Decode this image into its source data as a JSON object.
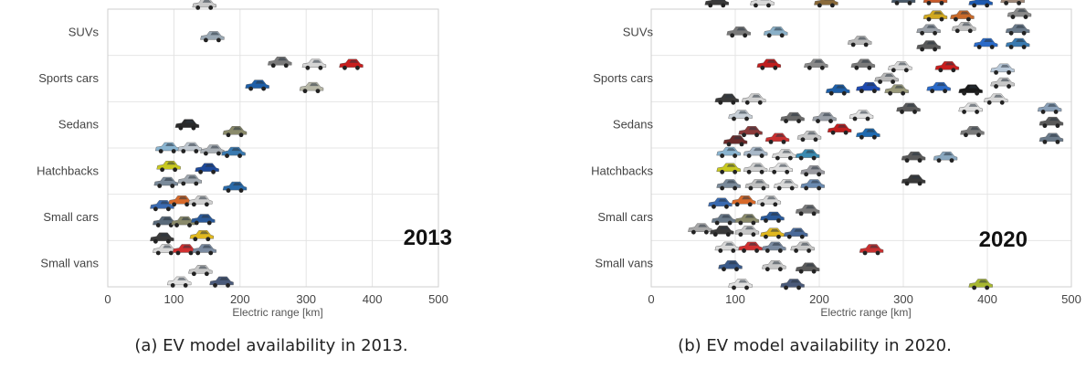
{
  "chart_data": [
    {
      "type": "scatter",
      "xlabel": "Electric range [km]",
      "ylabel": "",
      "xlim": [
        0,
        500
      ],
      "xticks": [
        "0",
        "100",
        "200",
        "300",
        "400",
        "500"
      ],
      "categories": [
        "SUVs",
        "Sports cars",
        "Sedans",
        "Hatchbacks",
        "Small cars",
        "Small vans"
      ],
      "annotation": "2013",
      "caption": "(a) EV model availability in 2013.",
      "points": [
        {
          "category": "SUVs",
          "x": 146,
          "offset": 0.6,
          "color": "#c8c8c8"
        },
        {
          "category": "SUVs",
          "x": 158,
          "offset": -0.1,
          "color": "#9aa8b4"
        },
        {
          "category": "Sports cars",
          "x": 260,
          "offset": 0.35,
          "color": "#7a7a7a"
        },
        {
          "category": "Sports cars",
          "x": 312,
          "offset": 0.3,
          "color": "#d4d4d4"
        },
        {
          "category": "Sports cars",
          "x": 368,
          "offset": 0.3,
          "color": "#c81e1e"
        },
        {
          "category": "Sports cars",
          "x": 226,
          "offset": -0.15,
          "color": "#1e5fa8"
        },
        {
          "category": "Sports cars",
          "x": 308,
          "offset": -0.2,
          "color": "#b8b8a8"
        },
        {
          "category": "Sedans",
          "x": 120,
          "offset": 0.0,
          "color": "#2a2a2a"
        },
        {
          "category": "Sedans",
          "x": 192,
          "offset": -0.15,
          "color": "#8a8a6a"
        },
        {
          "category": "Hatchbacks",
          "x": 90,
          "offset": 0.5,
          "color": "#8ab4d0"
        },
        {
          "category": "Hatchbacks",
          "x": 124,
          "offset": 0.5,
          "color": "#c0c8d0"
        },
        {
          "category": "Hatchbacks",
          "x": 158,
          "offset": 0.45,
          "color": "#aab0b6"
        },
        {
          "category": "Hatchbacks",
          "x": 190,
          "offset": 0.4,
          "color": "#3a7ab0"
        },
        {
          "category": "Hatchbacks",
          "x": 92,
          "offset": 0.1,
          "color": "#c8c820"
        },
        {
          "category": "Hatchbacks",
          "x": 150,
          "offset": 0.05,
          "color": "#1e4a9a"
        },
        {
          "category": "Hatchbacks",
          "x": 88,
          "offset": -0.25,
          "color": "#7a8a9a"
        },
        {
          "category": "Hatchbacks",
          "x": 124,
          "offset": -0.2,
          "color": "#a0a8b0"
        },
        {
          "category": "Hatchbacks",
          "x": 192,
          "offset": -0.35,
          "color": "#2a6aa8"
        },
        {
          "category": "Small cars",
          "x": 82,
          "offset": 0.25,
          "color": "#3a6ab0"
        },
        {
          "category": "Small cars",
          "x": 110,
          "offset": 0.35,
          "color": "#d86a2a"
        },
        {
          "category": "Small cars",
          "x": 140,
          "offset": 0.35,
          "color": "#d0d0d0"
        },
        {
          "category": "Small cars",
          "x": 86,
          "offset": -0.1,
          "color": "#5a6a7a"
        },
        {
          "category": "Small cars",
          "x": 114,
          "offset": -0.1,
          "color": "#8a8a6a"
        },
        {
          "category": "Small cars",
          "x": 144,
          "offset": -0.05,
          "color": "#2a5a9a"
        },
        {
          "category": "Small cars",
          "x": 82,
          "offset": -0.45,
          "color": "#3a3a3a"
        },
        {
          "category": "Small cars",
          "x": 142,
          "offset": -0.4,
          "color": "#e0b820"
        },
        {
          "category": "Small vans",
          "x": 86,
          "offset": 0.3,
          "color": "#d8d8d8"
        },
        {
          "category": "Small vans",
          "x": 116,
          "offset": 0.3,
          "color": "#d03030"
        },
        {
          "category": "Small vans",
          "x": 146,
          "offset": 0.3,
          "color": "#7a8aa0"
        },
        {
          "category": "Small vans",
          "x": 140,
          "offset": -0.15,
          "color": "#c8c8c8"
        },
        {
          "category": "Small vans",
          "x": 108,
          "offset": -0.4,
          "color": "#e0e0e0"
        },
        {
          "category": "Small vans",
          "x": 172,
          "offset": -0.4,
          "color": "#4a5a7a"
        }
      ]
    },
    {
      "type": "scatter",
      "xlabel": "Electric range [km]",
      "ylabel": "",
      "xlim": [
        0,
        500
      ],
      "xticks": [
        "0",
        "100",
        "200",
        "300",
        "400",
        "500"
      ],
      "categories": [
        "SUVs",
        "Sports cars",
        "Sedans",
        "Hatchbacks",
        "Small cars",
        "Small vans"
      ],
      "annotation": "2020",
      "caption": "(b) EV model availability in 2020.",
      "points": [
        {
          "category": "SUVs",
          "x": 78,
          "offset": 0.65,
          "color": "#3a3a3a"
        },
        {
          "category": "SUVs",
          "x": 132,
          "offset": 0.65,
          "color": "#d8d8d8"
        },
        {
          "category": "SUVs",
          "x": 208,
          "offset": 0.65,
          "color": "#8a6a3a"
        },
        {
          "category": "SUVs",
          "x": 300,
          "offset": 0.7,
          "color": "#4a5a6a"
        },
        {
          "category": "SUVs",
          "x": 338,
          "offset": 0.7,
          "color": "#c85a2a"
        },
        {
          "category": "SUVs",
          "x": 392,
          "offset": 0.65,
          "color": "#1e5ab0"
        },
        {
          "category": "SUVs",
          "x": 430,
          "offset": 0.7,
          "color": "#a08a7a"
        },
        {
          "category": "SUVs",
          "x": 338,
          "offset": 0.35,
          "color": "#d0a820"
        },
        {
          "category": "SUVs",
          "x": 370,
          "offset": 0.35,
          "color": "#c86a2a"
        },
        {
          "category": "SUVs",
          "x": 438,
          "offset": 0.4,
          "color": "#8a8a8a"
        },
        {
          "category": "SUVs",
          "x": 104,
          "offset": 0.0,
          "color": "#7a7a7a"
        },
        {
          "category": "SUVs",
          "x": 148,
          "offset": 0.0,
          "color": "#8ab0c8"
        },
        {
          "category": "SUVs",
          "x": 248,
          "offset": -0.2,
          "color": "#b8b8b8"
        },
        {
          "category": "SUVs",
          "x": 330,
          "offset": 0.05,
          "color": "#9aa0a8"
        },
        {
          "category": "SUVs",
          "x": 372,
          "offset": 0.1,
          "color": "#c0c0c0"
        },
        {
          "category": "SUVs",
          "x": 436,
          "offset": 0.05,
          "color": "#6a7a8a"
        },
        {
          "category": "SUVs",
          "x": 330,
          "offset": -0.3,
          "color": "#5a5a5a"
        },
        {
          "category": "SUVs",
          "x": 398,
          "offset": -0.25,
          "color": "#2a6ac8"
        },
        {
          "category": "SUVs",
          "x": 436,
          "offset": -0.25,
          "color": "#3a7ab0"
        },
        {
          "category": "Sports cars",
          "x": 140,
          "offset": 0.3,
          "color": "#c01e1e"
        },
        {
          "category": "Sports cars",
          "x": 196,
          "offset": 0.3,
          "color": "#8a8a8a"
        },
        {
          "category": "Sports cars",
          "x": 252,
          "offset": 0.3,
          "color": "#7a7a7a"
        },
        {
          "category": "Sports cars",
          "x": 296,
          "offset": 0.25,
          "color": "#d8d8d8"
        },
        {
          "category": "Sports cars",
          "x": 352,
          "offset": 0.25,
          "color": "#c81e1e"
        },
        {
          "category": "Sports cars",
          "x": 418,
          "offset": 0.2,
          "color": "#b8c8d8"
        },
        {
          "category": "Sports cars",
          "x": 280,
          "offset": 0.0,
          "color": "#b8b8b8"
        },
        {
          "category": "Sports cars",
          "x": 418,
          "offset": -0.1,
          "color": "#c8c8c8"
        },
        {
          "category": "Sports cars",
          "x": 222,
          "offset": -0.25,
          "color": "#1e5fa8"
        },
        {
          "category": "Sports cars",
          "x": 258,
          "offset": -0.2,
          "color": "#1e4ab0"
        },
        {
          "category": "Sports cars",
          "x": 292,
          "offset": -0.25,
          "color": "#9a9a7a"
        },
        {
          "category": "Sports cars",
          "x": 342,
          "offset": -0.2,
          "color": "#2a6ac8"
        },
        {
          "category": "Sports cars",
          "x": 380,
          "offset": -0.25,
          "color": "#1a1a1a"
        },
        {
          "category": "Sports cars",
          "x": 410,
          "offset": -0.45,
          "color": "#d8d8d8"
        },
        {
          "category": "Sedans",
          "x": 90,
          "offset": 0.55,
          "color": "#3a3a3a"
        },
        {
          "category": "Sedans",
          "x": 122,
          "offset": 0.55,
          "color": "#d0d0d0"
        },
        {
          "category": "Sedans",
          "x": 106,
          "offset": 0.2,
          "color": "#c8d0d8"
        },
        {
          "category": "Sedans",
          "x": 168,
          "offset": 0.15,
          "color": "#6a6a6a"
        },
        {
          "category": "Sedans",
          "x": 206,
          "offset": 0.15,
          "color": "#9aa0a8"
        },
        {
          "category": "Sedans",
          "x": 250,
          "offset": 0.2,
          "color": "#e0e0e0"
        },
        {
          "category": "Sedans",
          "x": 306,
          "offset": 0.35,
          "color": "#5a5a5a"
        },
        {
          "category": "Sedans",
          "x": 380,
          "offset": 0.35,
          "color": "#e0e0e0"
        },
        {
          "category": "Sedans",
          "x": 474,
          "offset": 0.35,
          "color": "#8aa0b8"
        },
        {
          "category": "Sedans",
          "x": 476,
          "offset": 0.05,
          "color": "#5a5a5a"
        },
        {
          "category": "Sedans",
          "x": 118,
          "offset": -0.15,
          "color": "#8a3a3a"
        },
        {
          "category": "Sedans",
          "x": 150,
          "offset": -0.3,
          "color": "#c83030"
        },
        {
          "category": "Sedans",
          "x": 188,
          "offset": -0.25,
          "color": "#c8c8c8"
        },
        {
          "category": "Sedans",
          "x": 224,
          "offset": -0.1,
          "color": "#c01e1e"
        },
        {
          "category": "Sedans",
          "x": 258,
          "offset": -0.2,
          "color": "#1e6ab0"
        },
        {
          "category": "Sedans",
          "x": 100,
          "offset": -0.35,
          "color": "#6a2a2a"
        },
        {
          "category": "Sedans",
          "x": 382,
          "offset": -0.15,
          "color": "#7a7a7a"
        },
        {
          "category": "Sedans",
          "x": 476,
          "offset": -0.3,
          "color": "#6a7a8a"
        },
        {
          "category": "Hatchbacks",
          "x": 92,
          "offset": 0.4,
          "color": "#8ab4d0"
        },
        {
          "category": "Hatchbacks",
          "x": 124,
          "offset": 0.4,
          "color": "#a8b8c8"
        },
        {
          "category": "Hatchbacks",
          "x": 158,
          "offset": 0.35,
          "color": "#d8d8d8"
        },
        {
          "category": "Hatchbacks",
          "x": 186,
          "offset": 0.35,
          "color": "#3a8ab0"
        },
        {
          "category": "Hatchbacks",
          "x": 92,
          "offset": 0.05,
          "color": "#c8c820"
        },
        {
          "category": "Hatchbacks",
          "x": 124,
          "offset": 0.05,
          "color": "#d0d0d0"
        },
        {
          "category": "Hatchbacks",
          "x": 154,
          "offset": 0.05,
          "color": "#e0e0e0"
        },
        {
          "category": "Hatchbacks",
          "x": 192,
          "offset": 0.0,
          "color": "#9a9aa0"
        },
        {
          "category": "Hatchbacks",
          "x": 92,
          "offset": -0.3,
          "color": "#7a8a9a"
        },
        {
          "category": "Hatchbacks",
          "x": 126,
          "offset": -0.3,
          "color": "#c0c0c0"
        },
        {
          "category": "Hatchbacks",
          "x": 160,
          "offset": -0.3,
          "color": "#d8d8d8"
        },
        {
          "category": "Hatchbacks",
          "x": 192,
          "offset": -0.3,
          "color": "#6a8ab0"
        },
        {
          "category": "Hatchbacks",
          "x": 312,
          "offset": 0.3,
          "color": "#5a5a5a"
        },
        {
          "category": "Hatchbacks",
          "x": 350,
          "offset": 0.3,
          "color": "#8aa8c0"
        },
        {
          "category": "Hatchbacks",
          "x": 312,
          "offset": -0.2,
          "color": "#3a3a3a"
        },
        {
          "category": "Small cars",
          "x": 82,
          "offset": 0.3,
          "color": "#3a6ab0"
        },
        {
          "category": "Small cars",
          "x": 110,
          "offset": 0.35,
          "color": "#d86a2a"
        },
        {
          "category": "Small cars",
          "x": 140,
          "offset": 0.35,
          "color": "#d8d8d8"
        },
        {
          "category": "Small cars",
          "x": 86,
          "offset": -0.05,
          "color": "#6a7a8a"
        },
        {
          "category": "Small cars",
          "x": 114,
          "offset": -0.05,
          "color": "#8a8a6a"
        },
        {
          "category": "Small cars",
          "x": 144,
          "offset": 0.0,
          "color": "#2a5a9a"
        },
        {
          "category": "Small cars",
          "x": 186,
          "offset": 0.15,
          "color": "#7a7a7a"
        },
        {
          "category": "Small cars",
          "x": 58,
          "offset": -0.25,
          "color": "#a8a8a8"
        },
        {
          "category": "Small cars",
          "x": 84,
          "offset": -0.3,
          "color": "#3a3a3a"
        },
        {
          "category": "Small cars",
          "x": 114,
          "offset": -0.3,
          "color": "#c8c8c8"
        },
        {
          "category": "Small cars",
          "x": 144,
          "offset": -0.35,
          "color": "#e0b820"
        },
        {
          "category": "Small vans",
          "x": 90,
          "offset": 0.35,
          "color": "#d8d8d8"
        },
        {
          "category": "Small vans",
          "x": 118,
          "offset": 0.35,
          "color": "#d03030"
        },
        {
          "category": "Small vans",
          "x": 146,
          "offset": 0.35,
          "color": "#7a8aa0"
        },
        {
          "category": "Small vans",
          "x": 180,
          "offset": 0.35,
          "color": "#c8c8c8"
        },
        {
          "category": "Small vans",
          "x": 172,
          "offset": 0.65,
          "color": "#4a6a9a"
        },
        {
          "category": "Small vans",
          "x": 262,
          "offset": 0.3,
          "color": "#c83030"
        },
        {
          "category": "Small vans",
          "x": 94,
          "offset": -0.05,
          "color": "#3a5a8a"
        },
        {
          "category": "Small vans",
          "x": 146,
          "offset": -0.05,
          "color": "#c8c8c8"
        },
        {
          "category": "Small vans",
          "x": 186,
          "offset": -0.1,
          "color": "#5a5a5a"
        },
        {
          "category": "Small vans",
          "x": 106,
          "offset": -0.45,
          "color": "#e0e0e0"
        },
        {
          "category": "Small vans",
          "x": 168,
          "offset": -0.45,
          "color": "#4a5a7a"
        },
        {
          "category": "Small vans",
          "x": 392,
          "offset": -0.45,
          "color": "#a8b830"
        }
      ]
    }
  ]
}
